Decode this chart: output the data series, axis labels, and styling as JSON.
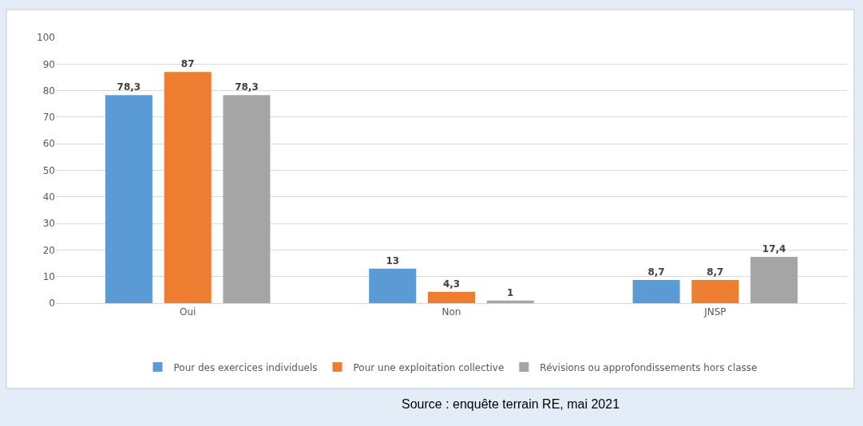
{
  "chart_data": {
    "type": "bar",
    "categories": [
      "Oui",
      "Non",
      "JNSP"
    ],
    "series": [
      {
        "name": "Pour des exercices individuels",
        "color": "#5b9bd5",
        "values": [
          78.3,
          13,
          8.7
        ],
        "value_labels": [
          "78,3",
          "13",
          "8,7"
        ]
      },
      {
        "name": "Pour une exploitation collective",
        "color": "#ed7d31",
        "values": [
          87,
          4.3,
          8.7
        ],
        "value_labels": [
          "87",
          "4,3",
          "8,7"
        ]
      },
      {
        "name": "Révisions ou approfondissements hors classe",
        "color": "#a5a5a5",
        "values": [
          78.3,
          1,
          17.4
        ],
        "value_labels": [
          "78,3",
          "1",
          "17,4"
        ]
      }
    ],
    "ylim": [
      0,
      100
    ],
    "yticks": [
      0,
      10,
      20,
      30,
      40,
      50,
      60,
      70,
      80,
      90,
      100
    ],
    "grid": "y",
    "legend": "bottom",
    "annotations": [
      "Source : enquête terrain RE, mai 2021"
    ]
  }
}
